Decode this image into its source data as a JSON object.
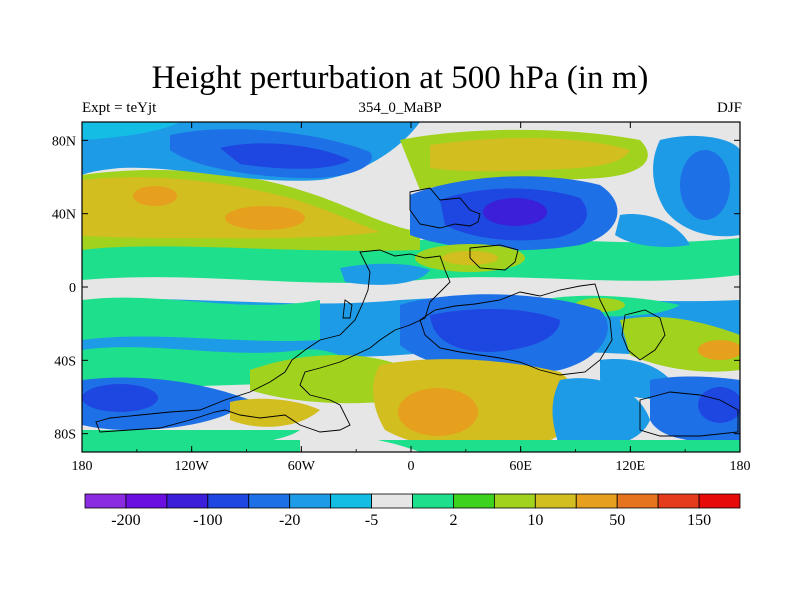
{
  "chart_data": {
    "type": "heatmap",
    "title": "Height perturbation at 500 hPa (in m)",
    "subtitle_left": "Expt = teYjt",
    "subtitle_center": "354_0_MaBP",
    "subtitle_right": "DJF",
    "x_ticks": [
      "180",
      "120W",
      "60W",
      "0",
      "60E",
      "120E",
      "180"
    ],
    "y_ticks": [
      "80N",
      "40N",
      "0",
      "40S",
      "80S"
    ],
    "xlim": [
      -180,
      180
    ],
    "ylim": [
      -90,
      90
    ],
    "colorbar": {
      "colors": [
        "#8a2be2",
        "#6a0fe0",
        "#3c1fd8",
        "#1e46e0",
        "#1e70e6",
        "#1e9be6",
        "#14bde4",
        "#e6e6e6",
        "#1ee08c",
        "#3cd21e",
        "#a0d21e",
        "#d2be1e",
        "#e6a01e",
        "#e6731e",
        "#e63c1e",
        "#e60a0a"
      ],
      "labels": [
        "-200",
        "-100",
        "-20",
        "-5",
        "2",
        "10",
        "50",
        "150"
      ]
    },
    "field_regions": [
      {
        "level": "-20",
        "lon": -110,
        "lat": 62
      },
      {
        "level": "50",
        "lon": -90,
        "lat": 34
      },
      {
        "level": "-100",
        "lon": 60,
        "lat": 40
      },
      {
        "level": "50",
        "lon": 0,
        "lat": -70
      },
      {
        "level": "-20",
        "lon": 60,
        "lat": -30
      },
      {
        "level": "-20",
        "lon": -160,
        "lat": -60
      },
      {
        "level": "-20",
        "lon": 160,
        "lat": -62
      },
      {
        "level": "-20",
        "lon": 140,
        "lat": 58
      }
    ]
  }
}
